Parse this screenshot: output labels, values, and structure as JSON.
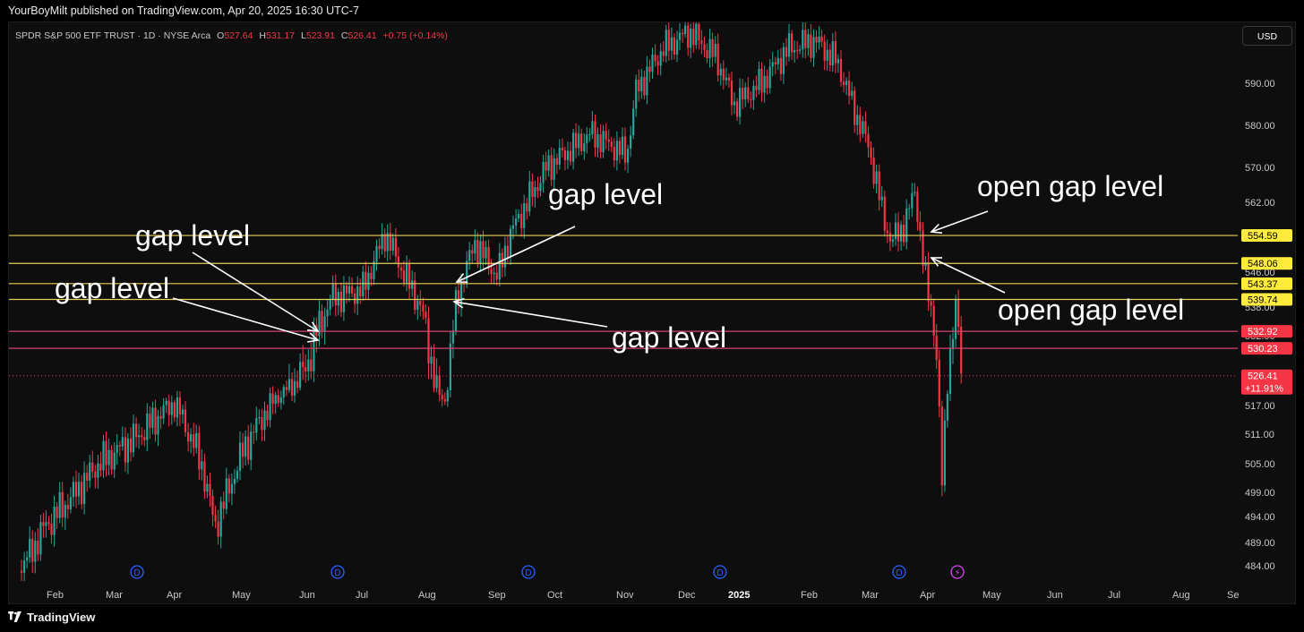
{
  "header": {
    "publisher_line": "YourBoyMilt published on TradingView.com, Apr 20, 2025 16:30 UTC-7"
  },
  "symbol": {
    "name": "SPDR S&P 500 ETF TRUST · 1D · NYSE Arca",
    "open_label": "O",
    "open": "527.64",
    "high_label": "H",
    "high": "531.17",
    "low_label": "L",
    "low": "523.91",
    "close_label": "C",
    "close": "526.41",
    "change": "+0.75 (+0.14%)"
  },
  "currency": "USD",
  "footer": {
    "brand": "TradingView",
    "logo_icon": "tradingview-logo-icon"
  },
  "colors": {
    "up": "#26a69a",
    "down": "#f23645",
    "gap_line_yellow": "#e5cf5a",
    "gap_line_red": "#d6416d",
    "badge_yellow": "#ffeb3b",
    "badge_red": "#f23645",
    "annotation": "#ffffff",
    "event_marker": "#2962ff",
    "flash_marker": "#e040fb"
  },
  "chart_data": {
    "type": "candlestick",
    "price_axis": {
      "ylim": [
        481,
        605
      ],
      "ticks": [
        "590.00",
        "580.00",
        "570.00",
        "562.00",
        "554.00",
        "546.00",
        "538.00",
        "532.00",
        "526.00",
        "517.00",
        "511.00",
        "505.00",
        "499.00",
        "494.00",
        "489.00",
        "484.00"
      ]
    },
    "time_axis": {
      "labels": [
        "Feb",
        "Mar",
        "Apr",
        "May",
        "Jun",
        "Jul",
        "Aug",
        "Sep",
        "Oct",
        "Nov",
        "Dec",
        "2025",
        "Feb",
        "Mar",
        "Apr",
        "May",
        "Jun",
        "Jul",
        "Aug",
        "Se"
      ],
      "bold_labels": [
        "2025"
      ]
    },
    "gap_levels": [
      {
        "value": 554.59,
        "label": "554.59",
        "color": "yellow"
      },
      {
        "value": 548.06,
        "label": "548.06",
        "color": "yellow"
      },
      {
        "value": 543.37,
        "label": "543.37",
        "color": "yellow"
      },
      {
        "value": 539.74,
        "label": "539.74",
        "color": "yellow"
      },
      {
        "value": 532.92,
        "label": "532.92",
        "color": "red"
      },
      {
        "value": 530.23,
        "label": "530.23",
        "color": "red"
      }
    ],
    "last_price": {
      "value": 526.41,
      "label": "526.41",
      "change": "+11.91%"
    },
    "series_close": [
      {
        "month": "2024-01",
        "close": 484
      },
      {
        "month": "2024-02",
        "close": 504
      },
      {
        "month": "2024-03",
        "close": 519
      },
      {
        "month": "2024-04",
        "close": 501
      },
      {
        "month": "2024-05",
        "close": 527
      },
      {
        "month": "2024-06",
        "close": 546
      },
      {
        "month": "2024-07",
        "close": 550
      },
      {
        "month": "2024-08",
        "close": 563
      },
      {
        "month": "2024-09",
        "close": 573
      },
      {
        "month": "2024-10",
        "close": 568
      },
      {
        "month": "2024-11",
        "close": 602
      },
      {
        "month": "2024-12",
        "close": 586
      },
      {
        "month": "2025-01",
        "close": 601
      },
      {
        "month": "2025-02",
        "close": 594
      },
      {
        "month": "2025-03",
        "close": 559
      },
      {
        "month": "2025-04",
        "close": 526.41
      }
    ],
    "annotations": [
      {
        "text": "gap level",
        "points_to": 532.92
      },
      {
        "text": "gap level",
        "points_to": 530.23
      },
      {
        "text": "gap level",
        "points_to": 543.37
      },
      {
        "text": "gap level",
        "points_to": 539.74
      },
      {
        "text": "open gap level",
        "points_to": 554.59
      },
      {
        "text": "open gap level",
        "points_to": 548.06
      }
    ],
    "event_markers": [
      "D",
      "D",
      "D",
      "D",
      "D",
      "D"
    ],
    "flash_marker": "⚡"
  }
}
